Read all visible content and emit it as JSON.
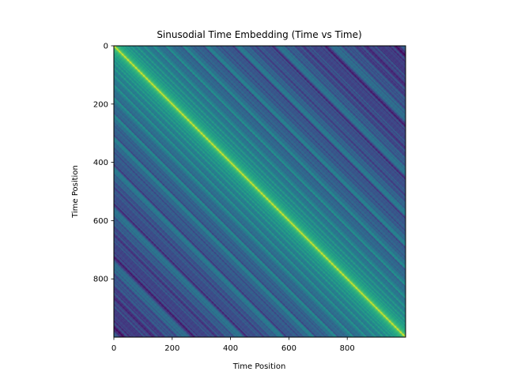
{
  "chart_data": {
    "type": "heatmap",
    "title": "Sinusodial Time Embedding (Time vs Time)",
    "xlabel": "Time Position",
    "ylabel": "Time Position",
    "x_range": [
      0,
      1000
    ],
    "y_range": [
      0,
      1000
    ],
    "y_inverted": true,
    "x_ticks": [
      0,
      200,
      400,
      600,
      800
    ],
    "y_ticks": [
      0,
      200,
      400,
      600,
      800
    ],
    "colormap": "viridis",
    "grid": false,
    "legend": "none",
    "description_values": {
      "diagonal_value": "max",
      "off_diagonal_trend": "decreasing with |x - y|",
      "far_corner_value": "min"
    }
  }
}
